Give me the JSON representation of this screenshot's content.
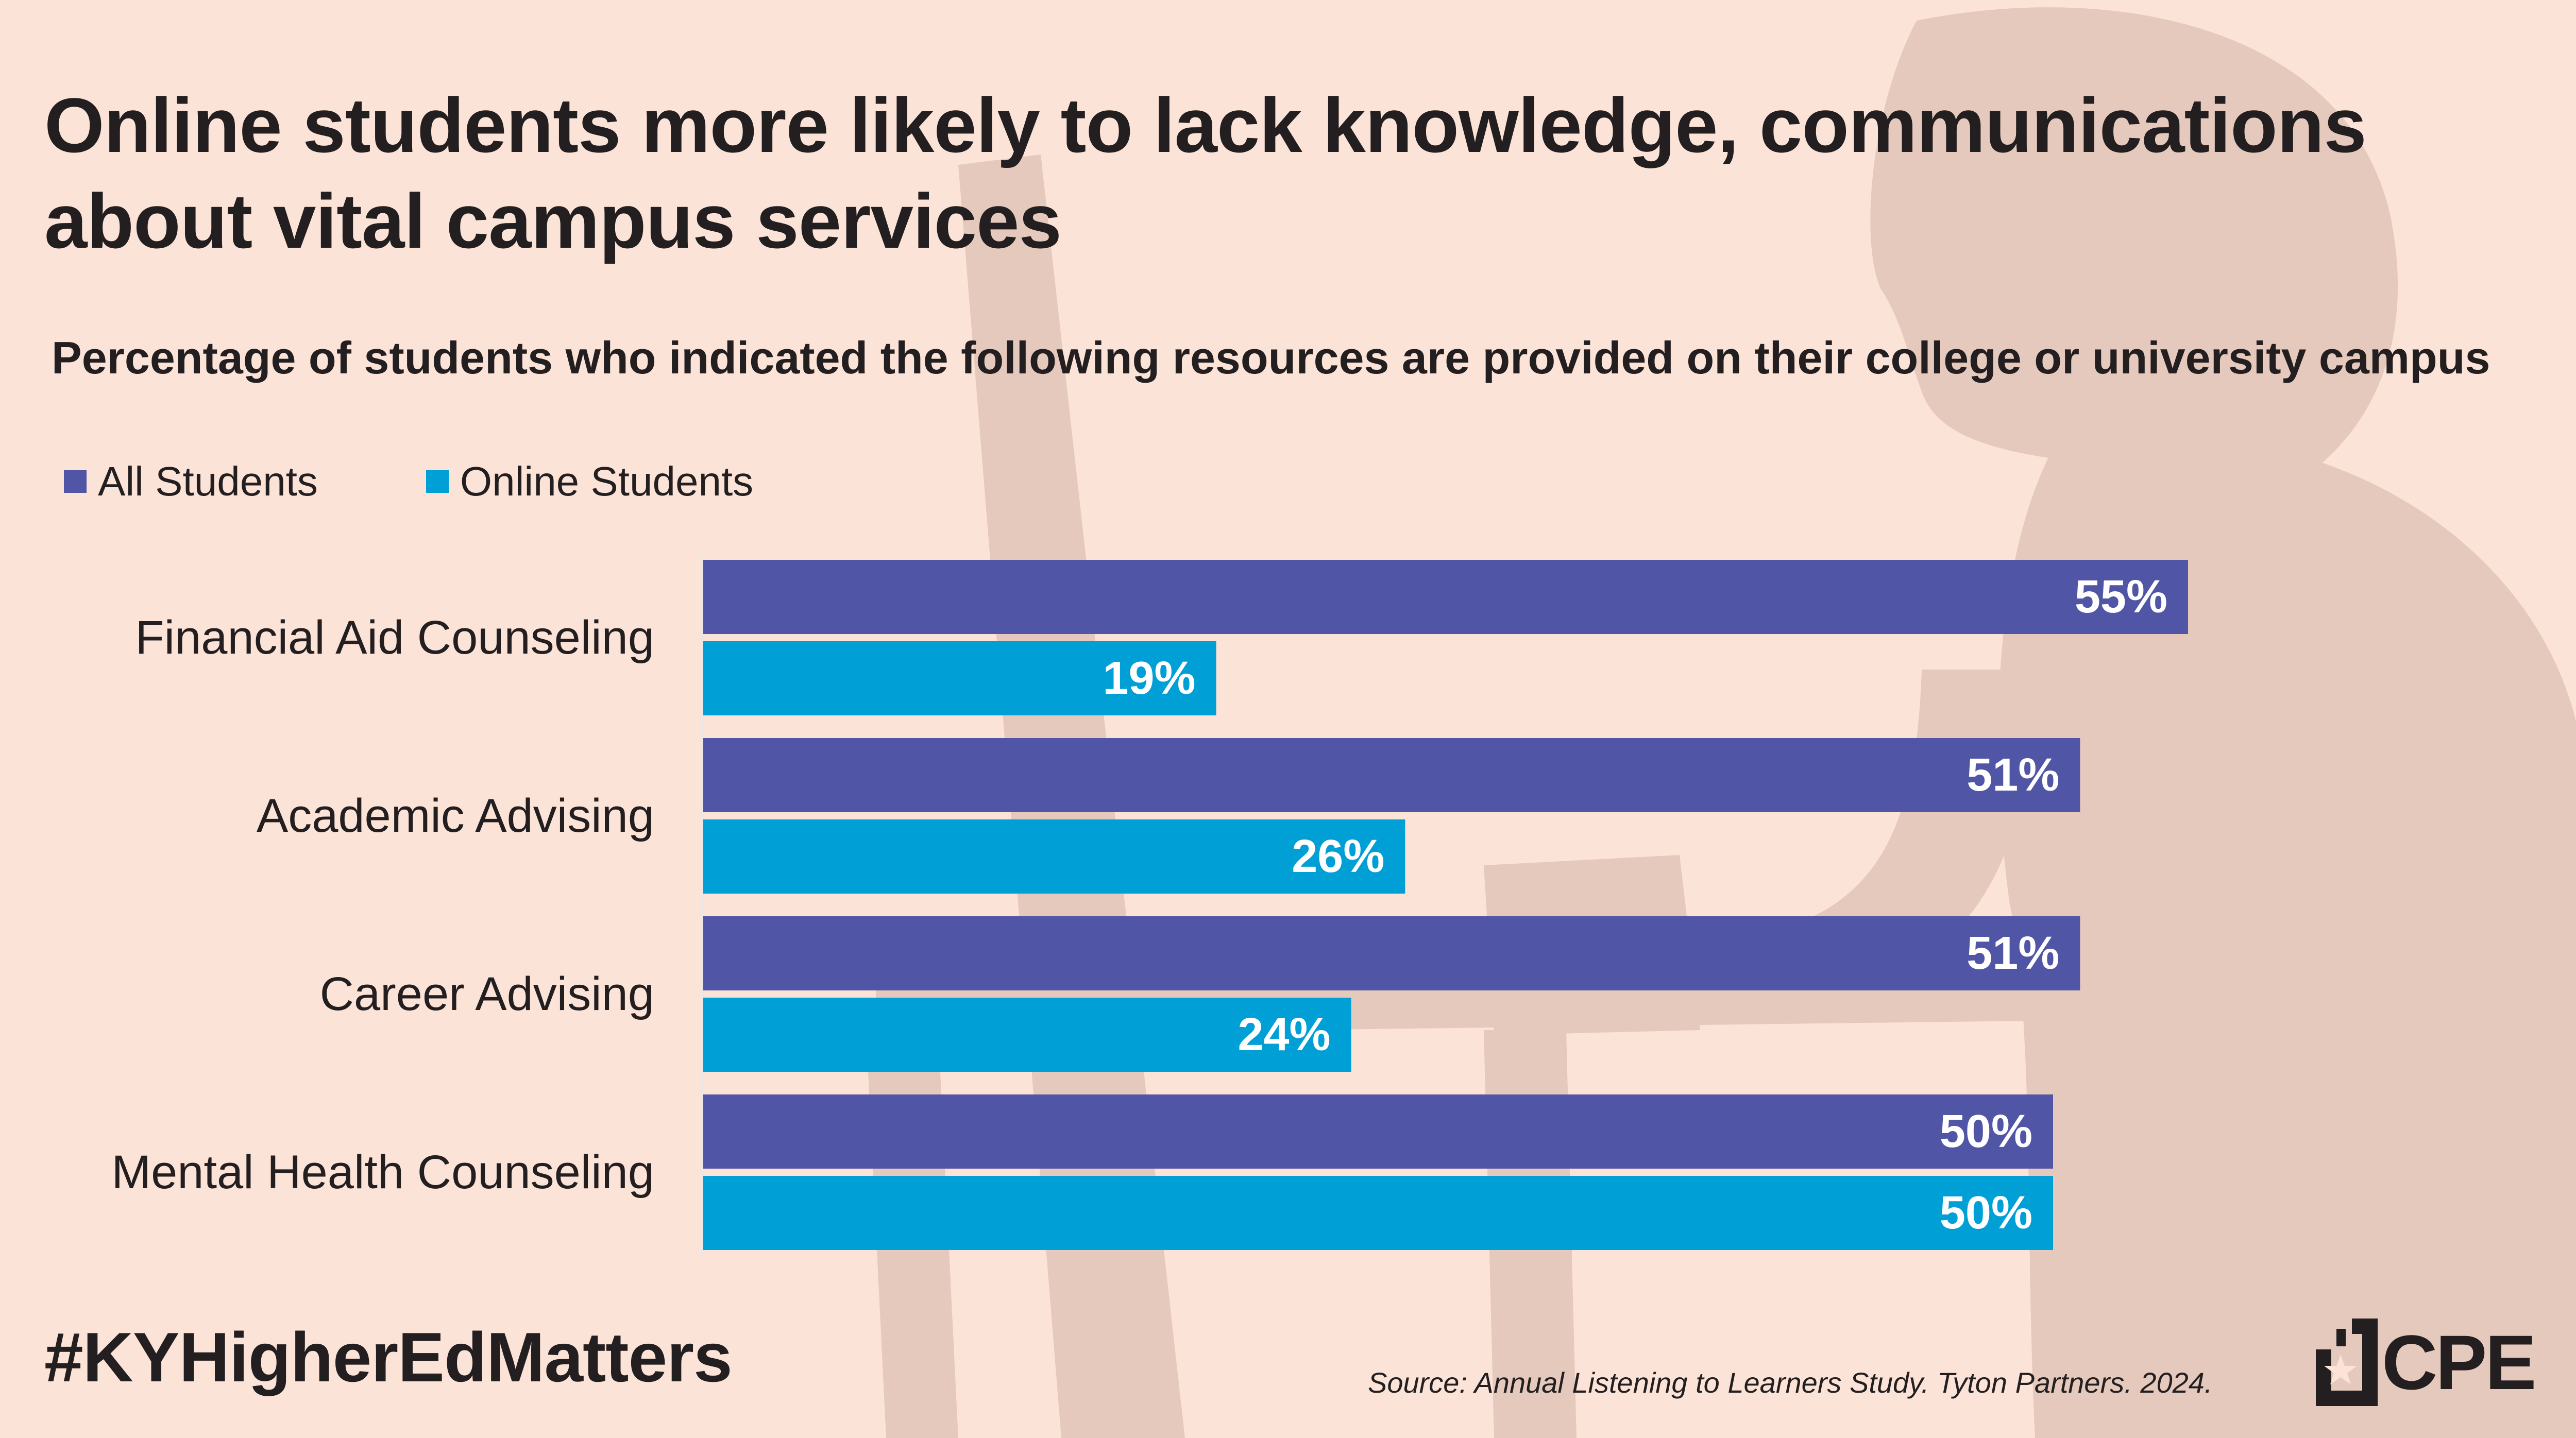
{
  "title": "Online students more likely to lack knowledge, communications about vital campus services",
  "subtitle": "Percentage of students who indicated the following resources are provided on their college or university campus",
  "footer": {
    "hashtag": "#KYHigherEdMatters",
    "source": "Source: Annual Listening to Learners Study. Tyton Partners. 2024.",
    "logo_text": "CPE"
  },
  "colors": {
    "background": "#fce3d8",
    "silhouette": "#e6c9bd",
    "all_students": "#5055a6",
    "online_students": "#00a0d6",
    "text": "#231f20"
  },
  "legend": [
    {
      "label": "All Students",
      "color": "#5055a6"
    },
    {
      "label": "Online Students",
      "color": "#00a0d6"
    }
  ],
  "chart_data": {
    "type": "bar",
    "orientation": "horizontal",
    "categories": [
      "Financial Aid Counseling",
      "Academic Advising",
      "Career Advising",
      "Mental Health Counseling"
    ],
    "series": [
      {
        "name": "All Students",
        "values": [
          55,
          51,
          51,
          50
        ],
        "labels": [
          "55%",
          "51%",
          "51%",
          "50%"
        ],
        "color": "#5055a6"
      },
      {
        "name": "Online Students",
        "values": [
          19,
          26,
          24,
          50
        ],
        "labels": [
          "19%",
          "26%",
          "24%",
          "50%"
        ],
        "color": "#00a0d6"
      }
    ],
    "xlim": [
      0,
      60
    ],
    "grid": false,
    "legend_position": "top-left"
  }
}
